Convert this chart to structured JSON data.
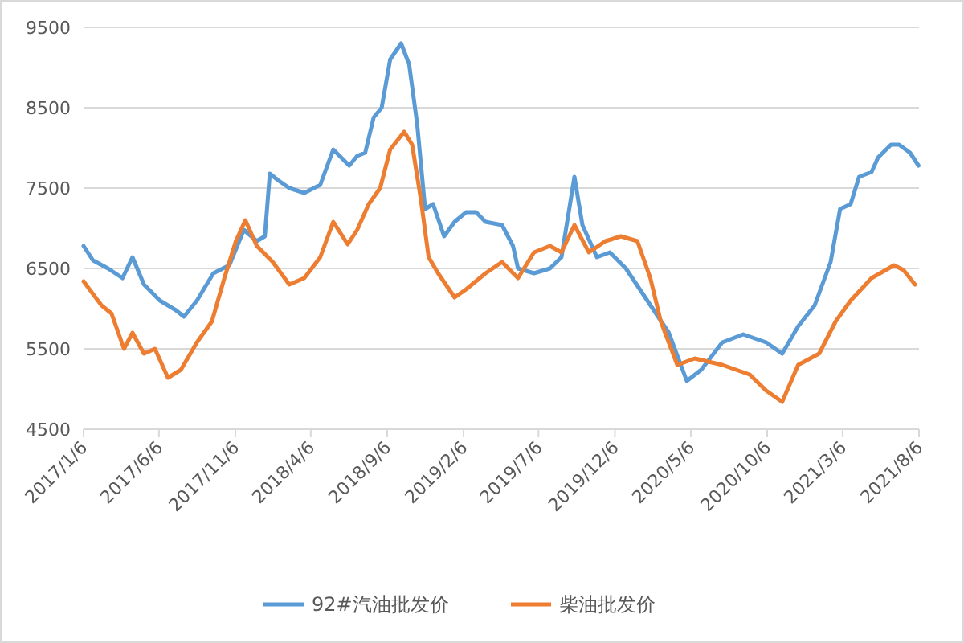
{
  "chart_data": {
    "type": "line",
    "xlim": [
      "2017-01-06",
      "2021-08-06"
    ],
    "xticks": [
      {
        "value": "2017-01-06",
        "label": "2017/1/6"
      },
      {
        "value": "2017-06-06",
        "label": "2017/6/6"
      },
      {
        "value": "2017-11-06",
        "label": "2017/11/6"
      },
      {
        "value": "2018-04-06",
        "label": "2018/4/6"
      },
      {
        "value": "2018-09-06",
        "label": "2018/9/6"
      },
      {
        "value": "2019-02-06",
        "label": "2019/2/6"
      },
      {
        "value": "2019-07-06",
        "label": "2019/7/6"
      },
      {
        "value": "2019-12-06",
        "label": "2019/12/6"
      },
      {
        "value": "2020-05-06",
        "label": "2020/5/6"
      },
      {
        "value": "2020-10-06",
        "label": "2020/10/6"
      },
      {
        "value": "2021-03-06",
        "label": "2021/3/6"
      },
      {
        "value": "2021-08-06",
        "label": "2021/8/6"
      }
    ],
    "ylim": [
      4500,
      9500
    ],
    "yticks": [
      4500,
      5500,
      6500,
      7500,
      8500,
      9500
    ],
    "grid": "y",
    "legend": "bottom",
    "series": [
      {
        "name": "92#汽油批发价",
        "color": "#5b9bd5",
        "x": [
          "2017-01-06",
          "2017-01-25",
          "2017-02-24",
          "2017-03-25",
          "2017-04-14",
          "2017-05-07",
          "2017-06-08",
          "2017-07-10",
          "2017-07-26",
          "2017-08-21",
          "2017-09-23",
          "2017-10-25",
          "2017-11-23",
          "2017-12-19",
          "2018-01-04",
          "2018-01-14",
          "2018-01-30",
          "2018-02-22",
          "2018-03-24",
          "2018-04-25",
          "2018-05-21",
          "2018-06-22",
          "2018-07-08",
          "2018-07-24",
          "2018-08-10",
          "2018-08-26",
          "2018-09-12",
          "2018-10-04",
          "2018-10-20",
          "2018-11-05",
          "2018-11-21",
          "2018-12-07",
          "2018-12-29",
          "2019-01-19",
          "2019-02-11",
          "2019-03-03",
          "2019-03-22",
          "2019-04-24",
          "2019-05-16",
          "2019-05-26",
          "2019-06-27",
          "2019-07-29",
          "2019-08-21",
          "2019-09-16",
          "2019-10-02",
          "2019-10-31",
          "2019-11-26",
          "2019-12-28",
          "2020-02-09",
          "2020-03-23",
          "2020-04-28",
          "2020-05-27",
          "2020-07-08",
          "2020-08-19",
          "2020-10-04",
          "2020-11-05",
          "2020-12-07",
          "2021-01-09",
          "2021-02-10",
          "2021-03-01",
          "2021-03-22",
          "2021-04-08",
          "2021-05-03",
          "2021-05-16",
          "2021-06-11",
          "2021-06-27",
          "2021-07-19",
          "2021-08-05"
        ],
        "values": [
          6780,
          6600,
          6500,
          6380,
          6640,
          6300,
          6100,
          5980,
          5900,
          6100,
          6440,
          6540,
          6980,
          6840,
          6900,
          7680,
          7600,
          7500,
          7440,
          7540,
          7980,
          7780,
          7900,
          7940,
          8380,
          8500,
          9100,
          9300,
          9040,
          8300,
          7240,
          7300,
          6900,
          7080,
          7200,
          7200,
          7080,
          7040,
          6780,
          6500,
          6440,
          6500,
          6640,
          7640,
          7040,
          6640,
          6700,
          6500,
          6100,
          5700,
          5100,
          5240,
          5580,
          5680,
          5580,
          5440,
          5780,
          6040,
          6580,
          7240,
          7300,
          7640,
          7700,
          7880,
          8040,
          8040,
          7940,
          7780
        ]
      },
      {
        "name": "柴油批发价",
        "color": "#ed7d31",
        "x": [
          "2017-01-06",
          "2017-02-11",
          "2017-03-03",
          "2017-03-28",
          "2017-04-14",
          "2017-05-07",
          "2017-05-29",
          "2017-06-24",
          "2017-07-20",
          "2017-08-21",
          "2017-09-20",
          "2017-10-15",
          "2017-11-07",
          "2017-11-26",
          "2017-12-19",
          "2018-01-20",
          "2018-02-22",
          "2018-03-24",
          "2018-04-25",
          "2018-05-21",
          "2018-06-19",
          "2018-07-08",
          "2018-07-31",
          "2018-08-23",
          "2018-09-12",
          "2018-10-10",
          "2018-10-26",
          "2018-11-12",
          "2018-11-28",
          "2018-12-17",
          "2019-01-19",
          "2019-02-11",
          "2019-03-22",
          "2019-04-24",
          "2019-05-26",
          "2019-06-27",
          "2019-07-29",
          "2019-08-21",
          "2019-09-16",
          "2019-10-15",
          "2019-11-17",
          "2019-12-18",
          "2020-01-20",
          "2020-02-15",
          "2020-03-07",
          "2020-04-09",
          "2020-05-14",
          "2020-07-08",
          "2020-09-01",
          "2020-10-04",
          "2020-11-05",
          "2020-12-07",
          "2021-01-18",
          "2021-02-20",
          "2021-03-22",
          "2021-05-03",
          "2021-06-17",
          "2021-07-06",
          "2021-07-29"
        ],
        "values": [
          6340,
          6040,
          5940,
          5500,
          5700,
          5440,
          5500,
          5140,
          5240,
          5580,
          5840,
          6380,
          6840,
          7100,
          6780,
          6580,
          6300,
          6380,
          6640,
          7080,
          6800,
          6980,
          7300,
          7500,
          7980,
          8200,
          8040,
          7380,
          6640,
          6440,
          6140,
          6240,
          6440,
          6580,
          6380,
          6700,
          6780,
          6700,
          7040,
          6700,
          6840,
          6900,
          6840,
          6380,
          5840,
          5300,
          5380,
          5300,
          5180,
          4980,
          4840,
          5300,
          5440,
          5840,
          6100,
          6380,
          6540,
          6480,
          6300
        ]
      }
    ]
  }
}
